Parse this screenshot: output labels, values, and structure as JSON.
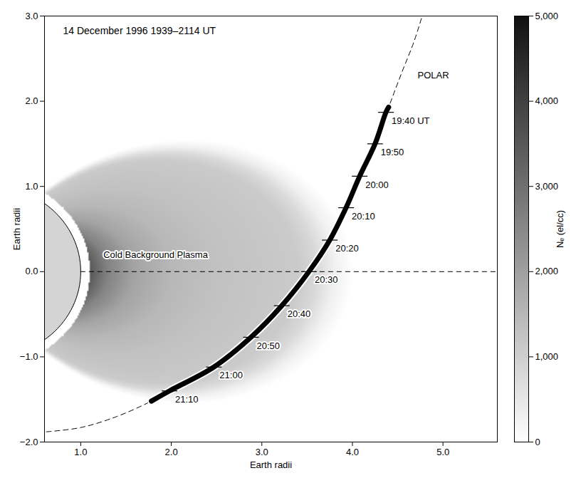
{
  "chart_data": {
    "type": "orbit_density_map",
    "title": "14 December 1996 1939–2114 UT",
    "x_label": "Earth radii",
    "y_label": "Earth radii",
    "xlim": [
      0.6,
      5.6
    ],
    "xticks": [
      1,
      2,
      3,
      4,
      5
    ],
    "ylim": [
      -2,
      3
    ],
    "yticks": [
      -2,
      -1,
      0,
      1,
      2,
      3
    ],
    "earth_radius": 1,
    "density": {
      "inner_radius": 1.1,
      "L": [
        1.1,
        1.3,
        1.6,
        2.0,
        2.5,
        3.0,
        3.4,
        3.6,
        3.8,
        4.0
      ],
      "Ne": [
        3500,
        2600,
        1900,
        1500,
        1300,
        1200,
        1100,
        800,
        300,
        0
      ]
    },
    "colorbar": {
      "label": "Nₑ (el/cc)",
      "range": [
        0,
        5000
      ],
      "ticks": [
        0,
        1000,
        2000,
        3000,
        4000,
        5000
      ]
    },
    "equator": {
      "y": 0,
      "line_style": "dashed"
    },
    "orbit": {
      "line_style": "dashed",
      "x": [
        0.62,
        1.0,
        1.4,
        1.78,
        1.98,
        2.47,
        2.88,
        3.22,
        3.52,
        3.75,
        3.93,
        4.08,
        4.25,
        4.4,
        4.55,
        4.68,
        4.77
      ],
      "y": [
        -1.88,
        -1.83,
        -1.7,
        -1.52,
        -1.4,
        -1.12,
        -0.77,
        -0.4,
        0.0,
        0.37,
        0.75,
        1.12,
        1.5,
        1.93,
        2.35,
        2.7,
        3.0
      ]
    },
    "track": {
      "color": "#000000",
      "x": [
        4.4,
        4.37,
        4.25,
        4.08,
        3.93,
        3.75,
        3.52,
        3.22,
        2.88,
        2.47,
        1.98,
        1.78
      ],
      "y": [
        1.93,
        1.87,
        1.5,
        1.12,
        0.75,
        0.37,
        0.0,
        -0.4,
        -0.77,
        -1.12,
        -1.4,
        -1.52
      ]
    },
    "time_marks": {
      "labels": [
        "19:40 UT",
        "19:50",
        "20:00",
        "20:10",
        "20:20",
        "20:30",
        "20:40",
        "20:50",
        "21:00",
        "21:10"
      ],
      "x": [
        4.37,
        4.25,
        4.08,
        3.93,
        3.75,
        3.52,
        3.22,
        2.88,
        2.47,
        1.98
      ],
      "y": [
        1.87,
        1.5,
        1.12,
        0.75,
        0.37,
        0.0,
        -0.4,
        -0.77,
        -1.12,
        -1.4
      ]
    },
    "annotations": [
      {
        "text": "POLAR",
        "x": 4.72,
        "y": 2.3
      },
      {
        "text": "Cold Background Plasma",
        "x": 1.25,
        "y": 0.2
      }
    ]
  }
}
